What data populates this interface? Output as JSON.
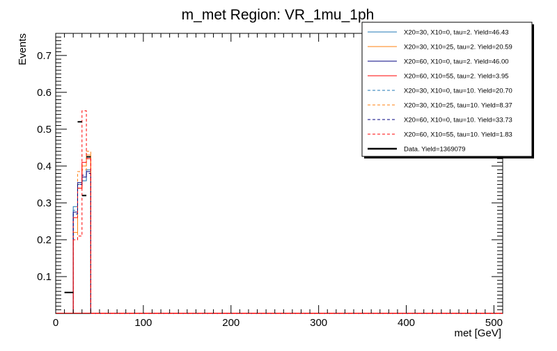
{
  "chart_data": {
    "type": "line",
    "title": "m_met Region: VR_1mu_1ph",
    "xlabel": "met [GeV]",
    "ylabel": "Events",
    "xlim": [
      0,
      510
    ],
    "ylim": [
      0,
      0.76
    ],
    "grid": false,
    "legend_position": "top-right",
    "x_ticks": [
      0,
      100,
      200,
      300,
      400,
      500
    ],
    "x_tick_labels": [
      "0",
      "100",
      "200",
      "300",
      "400",
      "500"
    ],
    "y_ticks": [
      0.1,
      0.2,
      0.3,
      0.4,
      0.5,
      0.6,
      0.7
    ],
    "y_tick_labels": [
      "0.1",
      "0.2",
      "0.3",
      "0.4",
      "0.5",
      "0.6",
      "0.7"
    ],
    "bin_edges": [
      20,
      25,
      30,
      35,
      40
    ],
    "series": [
      {
        "name": "X20=30, X10=0, tau=2. Yield=46.43",
        "color": "#1f77b4",
        "dashed": false,
        "values": [
          0.29,
          0.35,
          0.36,
          0.39
        ]
      },
      {
        "name": "X20=30, X10=25, tau=2. Yield=20.59",
        "color": "#ff7f0e",
        "dashed": false,
        "values": [
          0.22,
          0.34,
          0.4,
          0.43
        ]
      },
      {
        "name": "X20=60, X10=0, tau=2. Yield=46.00",
        "color": "#000080",
        "dashed": false,
        "values": [
          0.275,
          0.355,
          0.37,
          0.385
        ]
      },
      {
        "name": "X20=60, X10=55, tau=2. Yield=3.95",
        "color": "#ff0000",
        "dashed": false,
        "values": [
          0.26,
          0.34,
          0.41,
          0.42
        ]
      },
      {
        "name": "X20=30, X10=0, tau=10. Yield=20.70",
        "color": "#1f77b4",
        "dashed": true,
        "values": [
          0.28,
          0.35,
          0.36,
          0.38
        ]
      },
      {
        "name": "X20=30, X10=25, tau=10. Yield=8.37",
        "color": "#ff7f0e",
        "dashed": true,
        "values": [
          0.2,
          0.385,
          0.39,
          0.44
        ]
      },
      {
        "name": "X20=60, X10=0, tau=10. Yield=33.73",
        "color": "#000080",
        "dashed": true,
        "values": [
          0.27,
          0.35,
          0.375,
          0.38
        ]
      },
      {
        "name": "X20=60, X10=55, tau=10. Yield=1.83",
        "color": "#ff0000",
        "dashed": true,
        "values": [
          0.2,
          0.21,
          0.55,
          0.42
        ]
      }
    ],
    "data_series": {
      "name": "Data. Yield=1369079",
      "color": "#000000",
      "points": [
        {
          "x": 15,
          "y": 0.057,
          "xerr": 5
        },
        {
          "x": 27.5,
          "y": 0.52,
          "xerr": 2.5
        },
        {
          "x": 32.5,
          "y": 0.32,
          "xerr": 2.5
        },
        {
          "x": 37.5,
          "y": 0.425,
          "xerr": 2.5
        }
      ]
    }
  }
}
